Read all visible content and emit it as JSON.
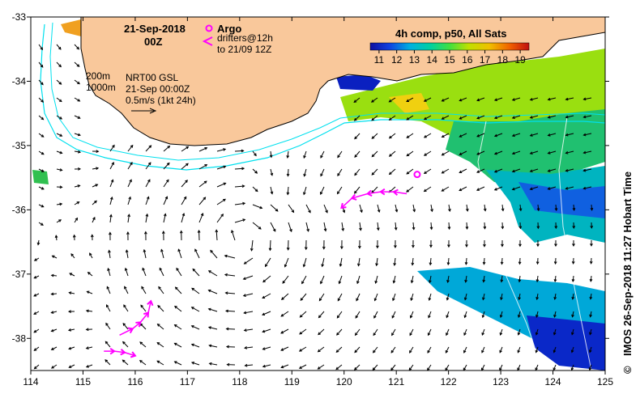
{
  "map": {
    "date": "21-Sep-2018",
    "time": "00Z",
    "legend_argo": "Argo",
    "legend_drifters": "drifters@12h",
    "legend_drifters_to": "to 21/09 12Z",
    "isobath_200": "200m",
    "isobath_1000": "1000m",
    "product": "NRT00 GSL",
    "product_time": "21-Sep 00:00Z",
    "arrow_scale": "0.5m/s (1kt 24h)",
    "colorbar_title": "4h comp, p50, All Sats",
    "colorbar_ticks": [
      "11",
      "12",
      "13",
      "14",
      "15",
      "16",
      "17",
      "18",
      "19"
    ],
    "colorbar_range": [
      10.5,
      19.5
    ],
    "x_ticks": [
      "114",
      "115",
      "116",
      "117",
      "118",
      "119",
      "120",
      "121",
      "122",
      "123",
      "124",
      "125"
    ],
    "y_ticks": [
      "-33",
      "-34",
      "-35",
      "-36",
      "-37",
      "-38"
    ],
    "lon_range": [
      114,
      125
    ],
    "lat_range": [
      -38.5,
      -33
    ],
    "copyright": "©",
    "credit": "IMOS 26-Sep-2018 11:27 Hobart Time",
    "argo_float": {
      "lon": 121.4,
      "lat": -35.45
    },
    "drifter_tracks": [
      [
        [
          121.2,
          -35.75
        ],
        [
          120.95,
          -35.72
        ],
        [
          120.7,
          -35.72
        ],
        [
          120.45,
          -35.75
        ],
        [
          120.15,
          -35.82
        ],
        [
          119.95,
          -35.97
        ]
      ],
      [
        [
          115.7,
          -37.95
        ],
        [
          115.95,
          -37.85
        ],
        [
          116.1,
          -37.75
        ],
        [
          116.25,
          -37.6
        ],
        [
          116.3,
          -37.42
        ]
      ],
      [
        [
          115.4,
          -38.2
        ],
        [
          115.6,
          -38.2
        ],
        [
          115.8,
          -38.22
        ],
        [
          116.0,
          -38.27
        ]
      ]
    ],
    "colors": {
      "land": "#f9c89b",
      "ocean": "#ffffff",
      "isobath": "#00e0ee",
      "drifter": "#ff00ff",
      "arrow": "#000000",
      "sst_low": "#0a1fd0",
      "sst_mid": "#00c0c0",
      "sst_high": "#b0e000"
    }
  }
}
